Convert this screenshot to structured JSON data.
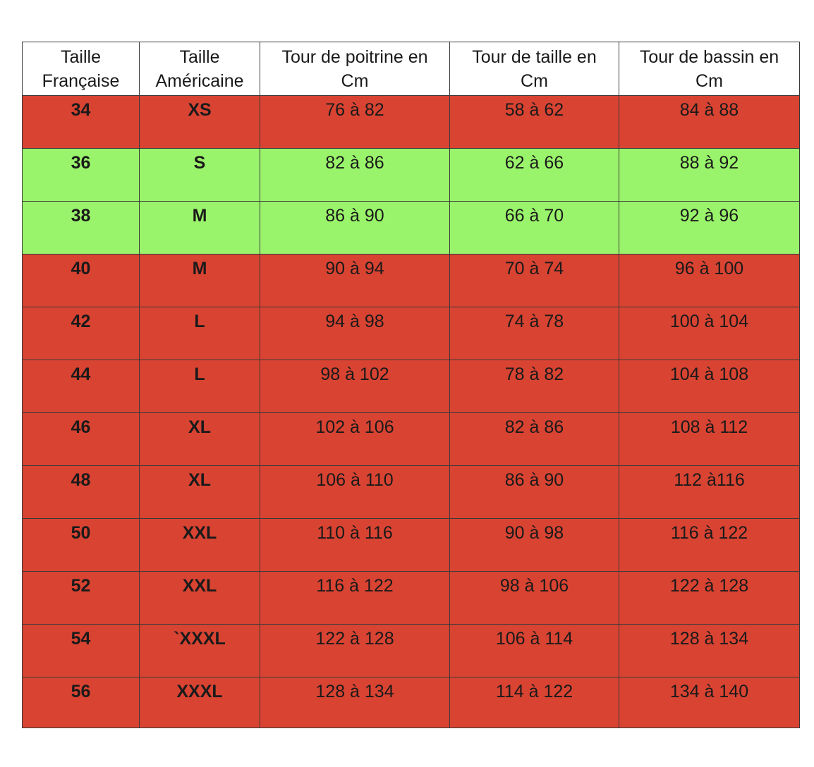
{
  "colors": {
    "red_row": "#d84332",
    "green_row": "#9af46b",
    "header_bg": "#ffffff",
    "border": "#3a3a3a"
  },
  "headers": [
    [
      "Taille",
      "Française"
    ],
    [
      "Taille",
      "Américaine"
    ],
    [
      "Tour de poitrine en",
      "Cm"
    ],
    [
      "Tour de taille en",
      "Cm"
    ],
    [
      "Tour de bassin en",
      "Cm"
    ]
  ],
  "rows": [
    {
      "fr": "34",
      "us": "XS",
      "poitrine": "76 à 82",
      "taille": "58 à 62",
      "bassin": "84 à 88",
      "highlight": "red"
    },
    {
      "fr": "36",
      "us": "S",
      "poitrine": "82 à 86",
      "taille": "62 à 66",
      "bassin": "88 à 92",
      "highlight": "green"
    },
    {
      "fr": "38",
      "us": "M",
      "poitrine": "86 à 90",
      "taille": "66 à 70",
      "bassin": "92 à 96",
      "highlight": "green"
    },
    {
      "fr": "40",
      "us": "M",
      "poitrine": "90 à 94",
      "taille": "70 à 74",
      "bassin": "96 à 100",
      "highlight": "red"
    },
    {
      "fr": "42",
      "us": "L",
      "poitrine": "94 à 98",
      "taille": "74 à 78",
      "bassin": "100 à 104",
      "highlight": "red"
    },
    {
      "fr": "44",
      "us": "L",
      "poitrine": "98 à 102",
      "taille": "78 à 82",
      "bassin": "104 à 108",
      "highlight": "red"
    },
    {
      "fr": "46",
      "us": "XL",
      "poitrine": "102 à 106",
      "taille": "82 à 86",
      "bassin": "108 à 112",
      "highlight": "red"
    },
    {
      "fr": "48",
      "us": "XL",
      "poitrine": "106 à 110",
      "taille": "86 à 90",
      "bassin": "112 à116",
      "highlight": "red"
    },
    {
      "fr": "50",
      "us": "XXL",
      "poitrine": "110 à 116",
      "taille": "90 à 98",
      "bassin": "116 à 122",
      "highlight": "red"
    },
    {
      "fr": "52",
      "us": "XXL",
      "poitrine": "116 à 122",
      "taille": "98 à 106",
      "bassin": "122 à 128",
      "highlight": "red"
    },
    {
      "fr": "54",
      "us": "`XXXL",
      "poitrine": "122 à 128",
      "taille": "106 à 114",
      "bassin": "128 à 134",
      "highlight": "red"
    },
    {
      "fr": "56",
      "us": "XXXL",
      "poitrine": "128 à 134",
      "taille": "114 à 122",
      "bassin": "134 à 140",
      "highlight": "red"
    }
  ]
}
